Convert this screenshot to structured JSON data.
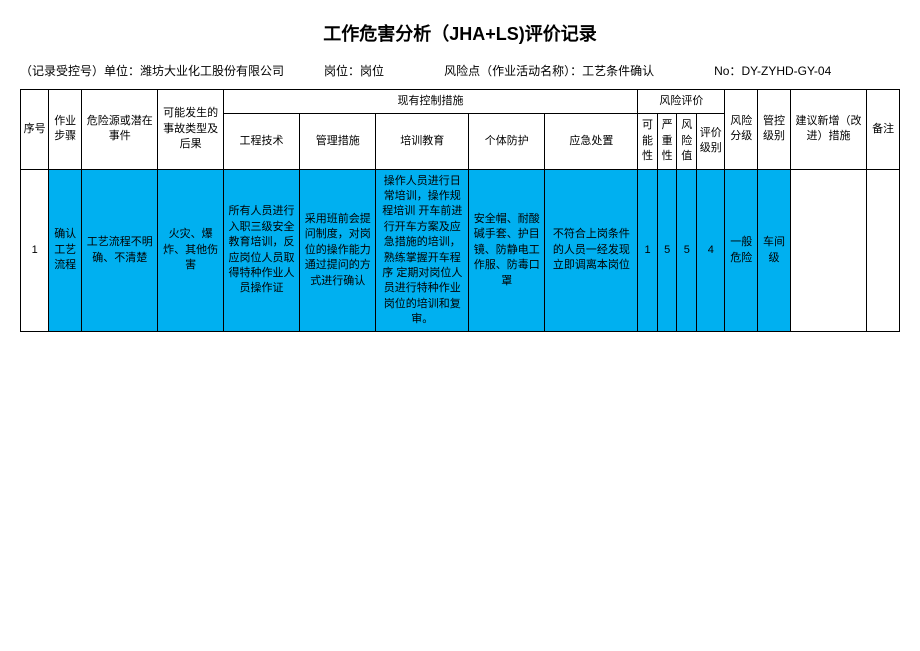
{
  "title": "工作危害分析（JHA+LS)评价记录",
  "meta": {
    "record_label": "（记录受控号）单位：",
    "record_value": "潍坊大业化工股份有限公司",
    "post_label": "岗位：",
    "post_value": "岗位",
    "risk_label": "风险点（作业活动名称）：",
    "risk_value": "工艺条件确认",
    "no_label": "No：",
    "no_value": "DY-ZYHD-GY-04"
  },
  "headers": {
    "no": "序号",
    "step": "作业步骤",
    "hazard": "危险源或潜在事件",
    "accident": "可能发生的事故类型及后果",
    "control_group": "现有控制措施",
    "engineering": "工程技术",
    "management": "管理措施",
    "training": "培训教育",
    "ppe": "个体防护",
    "emergency": "应急处置",
    "risk_eval_group": "风险评价",
    "possibility": "可能性",
    "severity": "严重性",
    "risk_value": "风险值",
    "eval_level": "评价级别",
    "risk_level": "风险分级",
    "ctrl_level": "管控级别",
    "suggest": "建议新增（改进）措施",
    "note": "备注"
  },
  "rows": [
    {
      "no": "1",
      "step": "确认工艺流程",
      "hazard": "工艺流程不明确、不清楚",
      "accident": "火灾、爆炸、其他伤害",
      "engineering": "所有人员进行入职三级安全教育培训，反应岗位人员取得特种作业人员操作证",
      "management": "采用班前会提问制度，对岗位的操作能力通过提问的方式进行确认",
      "training": "操作人员进行日常培训，操作规程培训 开车前进行开车方案及应急措施的培训，熟练掌握开车程序 定期对岗位人员进行特种作业岗位的培训和复审。",
      "ppe": "安全帽、耐酸碱手套、护目镜、防静电工作服、防毒口罩",
      "emergency": "不符合上岗条件的人员一经发现立即调离本岗位",
      "p": "1",
      "s": "5",
      "r": "5",
      "lvl": "4",
      "risk_level": "一般危险",
      "ctrl_level": "车间级",
      "suggest": "",
      "note": ""
    }
  ],
  "colors": {
    "highlight": "#00b0f0",
    "border": "#000000",
    "bg": "#ffffff"
  }
}
